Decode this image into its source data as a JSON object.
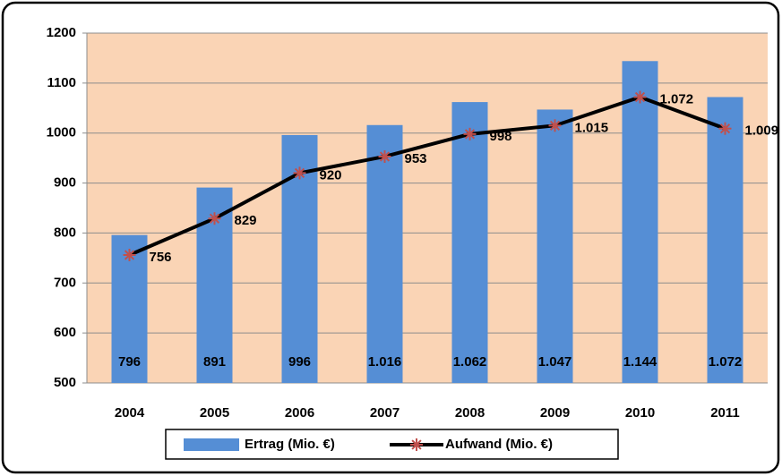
{
  "chart_data": {
    "type": "combo",
    "categories": [
      "2004",
      "2005",
      "2006",
      "2007",
      "2008",
      "2009",
      "2010",
      "2011"
    ],
    "series": [
      {
        "name": "Ertrag (Mio. €)",
        "type": "bar",
        "color": "#558ed5",
        "values": [
          796,
          891,
          996,
          1016,
          1062,
          1047,
          1144,
          1072
        ],
        "value_labels": [
          "796",
          "891",
          "996",
          "1.016",
          "1.062",
          "1.047",
          "1.144",
          "1.072"
        ]
      },
      {
        "name": "Aufwand (Mio. €)",
        "type": "line",
        "color": "#000000",
        "marker_color": "#c0504d",
        "values": [
          756,
          829,
          920,
          953,
          998,
          1015,
          1072,
          1009
        ],
        "value_labels": [
          "756",
          "829",
          "920",
          "953",
          "998",
          "1.015",
          "1.072",
          "1.009"
        ]
      }
    ],
    "ylim": [
      500,
      1200
    ],
    "yticks": [
      500,
      600,
      700,
      800,
      900,
      1000,
      1100,
      1200
    ],
    "grid": true,
    "legend": "bottom",
    "plot_background": "#fad4b5"
  }
}
